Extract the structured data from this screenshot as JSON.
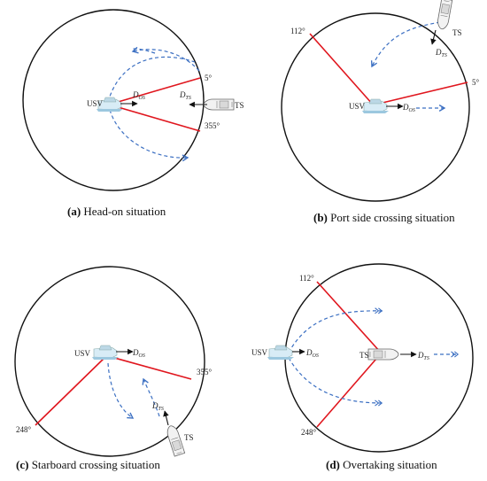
{
  "panels": [
    {
      "id": "a",
      "caption_letter": "(a)",
      "caption_text": "Head-on situation",
      "usv_label": "USV",
      "ts_label": "TS",
      "dos_label": "D",
      "dos_sub": "OS",
      "dts_label": "D",
      "dts_sub": "TS",
      "angle_labels": [
        "5°",
        "355°"
      ]
    },
    {
      "id": "b",
      "caption_letter": "(b)",
      "caption_text": "Port side crossing situation",
      "usv_label": "USV",
      "ts_label": "TS",
      "dos_label": "D",
      "dos_sub": "OS",
      "dts_label": "D",
      "dts_sub": "TS",
      "angle_labels": [
        "112°",
        "5°"
      ]
    },
    {
      "id": "c",
      "caption_letter": "(c)",
      "caption_text": "Starboard crossing situation",
      "usv_label": "USV",
      "ts_label": "TS",
      "dos_label": "D",
      "dos_sub": "OS",
      "dts_label": "D",
      "dts_sub": "TS",
      "angle_labels": [
        "355°",
        "248°"
      ]
    },
    {
      "id": "d",
      "caption_letter": "(d)",
      "caption_text": "Overtaking situation",
      "usv_label": "USV",
      "ts_label": "TS",
      "dos_label": "D",
      "dos_sub": "OS",
      "dts_label": "D",
      "dts_sub": "TS",
      "angle_labels": [
        "112°",
        "248°"
      ]
    }
  ],
  "colors": {
    "sector_line": "#e0161e",
    "dashed_path": "#3b6fc2",
    "circle": "#111111",
    "vessel_fill": "#cfe6f2",
    "vessel_edge": "#666666"
  }
}
